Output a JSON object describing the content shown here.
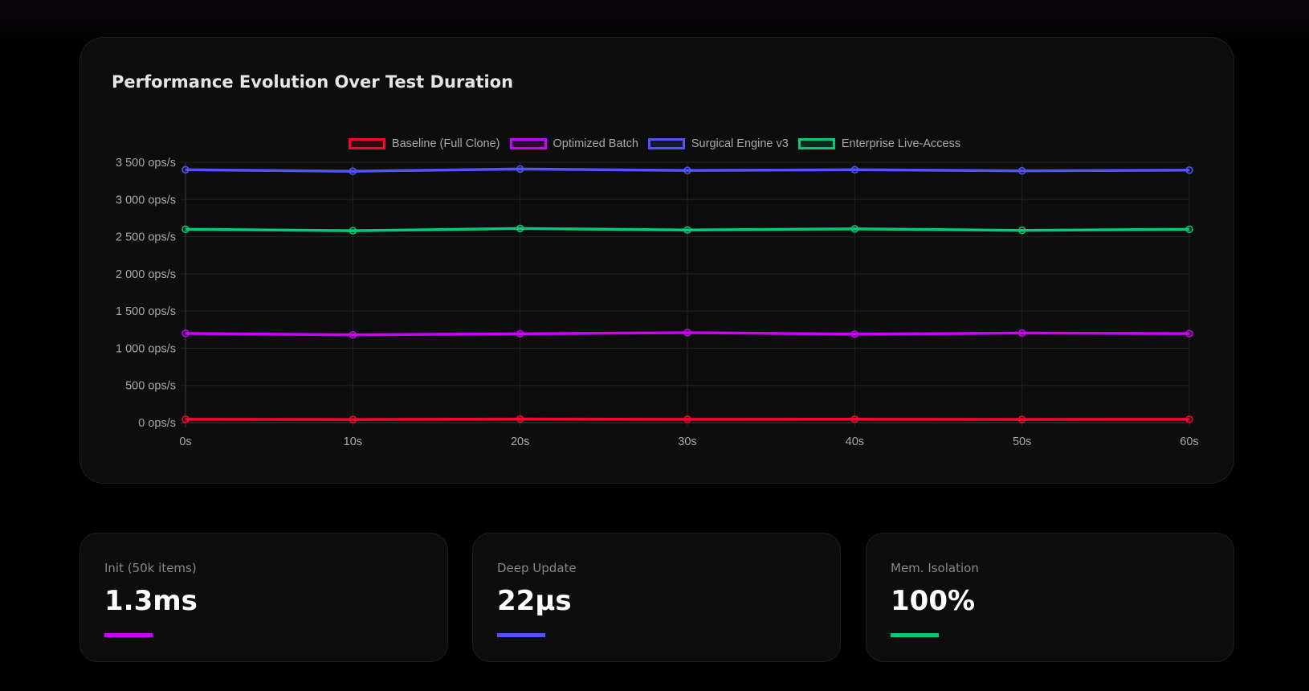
{
  "chart_data": {
    "type": "line",
    "title": "Performance Evolution Over Test Duration",
    "categories": [
      "0s",
      "10s",
      "20s",
      "30s",
      "40s",
      "50s",
      "60s"
    ],
    "ylim": [
      0,
      3500
    ],
    "yticks": [
      0,
      500,
      1000,
      1500,
      2000,
      2500,
      3000,
      3500
    ],
    "ytick_labels": [
      "0 ops/s",
      "500 ops/s",
      "1 000 ops/s",
      "1 500 ops/s",
      "2 000 ops/s",
      "2 500 ops/s",
      "3 000 ops/s",
      "3 500 ops/s"
    ],
    "grid": true,
    "legend_position": "top",
    "series": [
      {
        "name": "Baseline (Full Clone)",
        "color": "#ff0033",
        "values": [
          45,
          42,
          48,
          44,
          46,
          43,
          45
        ]
      },
      {
        "name": "Optimized Batch",
        "color": "#cc00ff",
        "values": [
          1200,
          1180,
          1195,
          1210,
          1190,
          1205,
          1198
        ]
      },
      {
        "name": "Surgical Engine v3",
        "color": "#5252ff",
        "values": [
          3400,
          3380,
          3410,
          3390,
          3400,
          3385,
          3395
        ]
      },
      {
        "name": "Enterprise Live-Access",
        "color": "#00c97a",
        "values": [
          2600,
          2580,
          2610,
          2590,
          2605,
          2585,
          2600
        ]
      }
    ]
  },
  "stats": [
    {
      "label": "Init (50k items)",
      "value": "1.3ms",
      "color": "#cc00ff"
    },
    {
      "label": "Deep Update",
      "value": "22µs",
      "color": "#5252ff"
    },
    {
      "label": "Mem. Isolation",
      "value": "100%",
      "color": "#00c97a"
    }
  ]
}
